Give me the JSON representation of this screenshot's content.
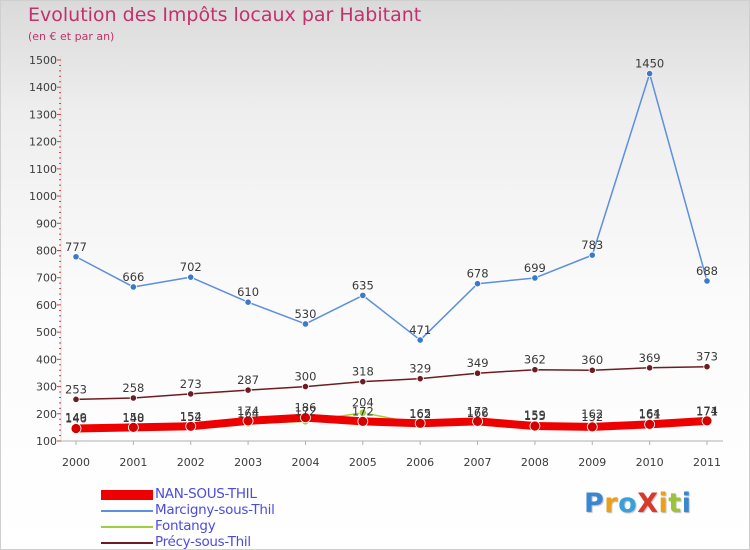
{
  "title": "Evolution des Impôts locaux par Habitant",
  "subtitle": "(en € et par an)",
  "logo": {
    "text": "ProXiti",
    "letters": [
      {
        "ch": "P",
        "color": "#3a86d0"
      },
      {
        "ch": "r",
        "color": "#e9a01b"
      },
      {
        "ch": "o",
        "color": "#3aa0d8"
      },
      {
        "ch": "X",
        "color": "#d83a2a"
      },
      {
        "ch": "i",
        "color": "#e9a01b"
      },
      {
        "ch": "t",
        "color": "#9bc23a"
      },
      {
        "ch": "i",
        "color": "#3a86d0"
      }
    ]
  },
  "chart_data": {
    "type": "line",
    "title": "Evolution des Impôts locaux par Habitant",
    "subtitle": "(en € et par an)",
    "xlabel": "",
    "ylabel": "",
    "ylim": [
      100,
      1500
    ],
    "yticks": [
      100,
      200,
      300,
      400,
      500,
      600,
      700,
      800,
      900,
      1000,
      1100,
      1200,
      1300,
      1400,
      1500
    ],
    "categories": [
      "2000",
      "2001",
      "2002",
      "2003",
      "2004",
      "2005",
      "2006",
      "2007",
      "2008",
      "2009",
      "2010",
      "2011"
    ],
    "series": [
      {
        "name": "Marcigny-sous-Thil",
        "color": "#5b8fe0",
        "point_color": "#3a7ac8",
        "values": [
          777,
          666,
          702,
          610,
          530,
          635,
          471,
          678,
          699,
          783,
          1450,
          688
        ]
      },
      {
        "name": "Précy-sous-Thil",
        "color": "#6e1b22",
        "point_color": "#6e1b22",
        "values": [
          253,
          258,
          273,
          287,
          300,
          318,
          329,
          349,
          362,
          360,
          369,
          373
        ]
      },
      {
        "name": "Fontangy",
        "color": "#9ed03c",
        "point_color": "#9ed03c",
        "values": [
          149,
          148,
          152,
          164,
          172,
          204,
          162,
          166,
          159,
          162,
          164,
          171
        ]
      },
      {
        "name": "NAN-SOUS-THIL",
        "color": "#ee0000",
        "point_color": "#d40000",
        "values": [
          146,
          150,
          154,
          174,
          186,
          172,
          165,
          172,
          155,
          152,
          161,
          174
        ]
      }
    ],
    "legend": [
      "NAN-SOUS-THIL",
      "Marcigny-sous-Thil",
      "Fontangy",
      "Précy-sous-Thil"
    ],
    "legend_position": "bottom-left",
    "grid": false
  }
}
